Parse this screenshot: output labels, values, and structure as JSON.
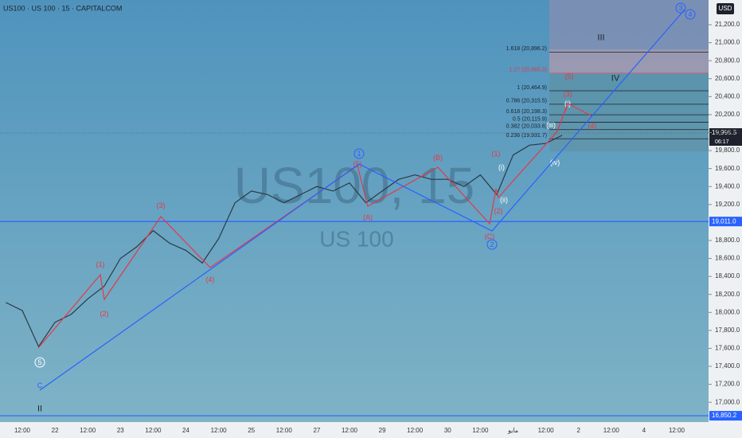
{
  "chart_data": {
    "type": "line",
    "title": "US100 · US 100 · 15 · CAPITALCOM",
    "watermark": "US100, 15",
    "watermark_subtitle": "US 100",
    "currency": "USD",
    "countdown": "06:17",
    "categories": [
      null,
      "12:00",
      null,
      "22",
      null,
      "12:00",
      null,
      "23",
      null,
      "12:00",
      null,
      "24",
      null,
      "12:00",
      null,
      "25",
      null,
      "12:00",
      null,
      "27",
      null,
      "12:00",
      null,
      "29",
      null,
      "12:00",
      null,
      "30",
      null,
      "12:00",
      null,
      "مايو",
      null,
      "12:00",
      null,
      "2",
      null,
      "12:00",
      null,
      "4",
      null,
      "12:00",
      null
    ],
    "values": [
      18110,
      18020,
      17620,
      17890,
      17980,
      18150,
      18290,
      18600,
      18730,
      18910,
      18770,
      18690,
      18550,
      18820,
      19220,
      19350,
      19310,
      19220,
      19310,
      19400,
      19350,
      19440,
      19220,
      19350,
      19480,
      19530,
      19480,
      19480,
      19400,
      19530,
      19310,
      19750,
      19860,
      19880,
      19970,
      null,
      null,
      null,
      null,
      null,
      null,
      null,
      null
    ],
    "color": "#2a3a44",
    "ylim": [
      16780,
      21475
    ],
    "yticks": [
      {
        "value": 17000,
        "label": "17,000.0"
      },
      {
        "value": 17200,
        "label": "17,200.0"
      },
      {
        "value": 17400,
        "label": "17,400.0"
      },
      {
        "value": 17600,
        "label": "17,600.0"
      },
      {
        "value": 17800,
        "label": "17,800.0"
      },
      {
        "value": 18000,
        "label": "18,000.0"
      },
      {
        "value": 18200,
        "label": "18,200.0"
      },
      {
        "value": 18400,
        "label": "18,400.0"
      },
      {
        "value": 18600,
        "label": "18,600.0"
      },
      {
        "value": 18800,
        "label": "18,800.0"
      },
      {
        "value": 19200,
        "label": "19,200.0"
      },
      {
        "value": 19400,
        "label": "19,400.0"
      },
      {
        "value": 19600,
        "label": "19,600.0"
      },
      {
        "value": 19800,
        "label": "19,800.0"
      },
      {
        "value": 20000,
        "label": "20,000.0"
      },
      {
        "value": 20200,
        "label": "20,200.0"
      },
      {
        "value": 20400,
        "label": "20,400.0"
      },
      {
        "value": 20600,
        "label": "20,600.0"
      },
      {
        "value": 20800,
        "label": "20,800.0"
      },
      {
        "value": 21000,
        "label": "21,000.0"
      },
      {
        "value": 21200,
        "label": "21,200.0"
      }
    ],
    "price_labels": [
      {
        "value": 19995.5,
        "label": "19,995.5",
        "color": "#1e222d"
      },
      {
        "value": 19011.0,
        "label": "19,011.0",
        "color": "#2962ff"
      },
      {
        "value": 16850.2,
        "label": "16,850.2",
        "color": "#2962ff"
      }
    ],
    "fib_levels": [
      {
        "value": 20896.2,
        "label": "1.618 (20,896.2)"
      },
      {
        "value": 20665.0,
        "label": "1.27 (20,665.0)"
      },
      {
        "value": 20464.9,
        "label": "1 (20,464.9)"
      },
      {
        "value": 20315.5,
        "label": "0.786 (20,315.5)"
      },
      {
        "value": 20198.3,
        "label": "0.618 (20,198.3)"
      },
      {
        "value": 20115.9,
        "label": "0.5 (20,115.9)"
      },
      {
        "value": 20033.6,
        "label": "0.382 (20,033.6)"
      },
      {
        "value": 19931.7,
        "label": "0.236 (19,931.7)"
      }
    ],
    "wave_labels": [
      "(1)",
      "(2)",
      "(3)",
      "(4)",
      "(5)",
      "(A)",
      "(B)",
      "(C)",
      "(1)",
      "(2)",
      "(3)",
      "(4)",
      "(5)",
      "1",
      "2",
      "3",
      "4",
      "5",
      "C",
      "II",
      "III",
      "IV",
      "(i)",
      "(ii)",
      "(iii)",
      "(iv)",
      "(i)"
    ],
    "grid": false
  }
}
